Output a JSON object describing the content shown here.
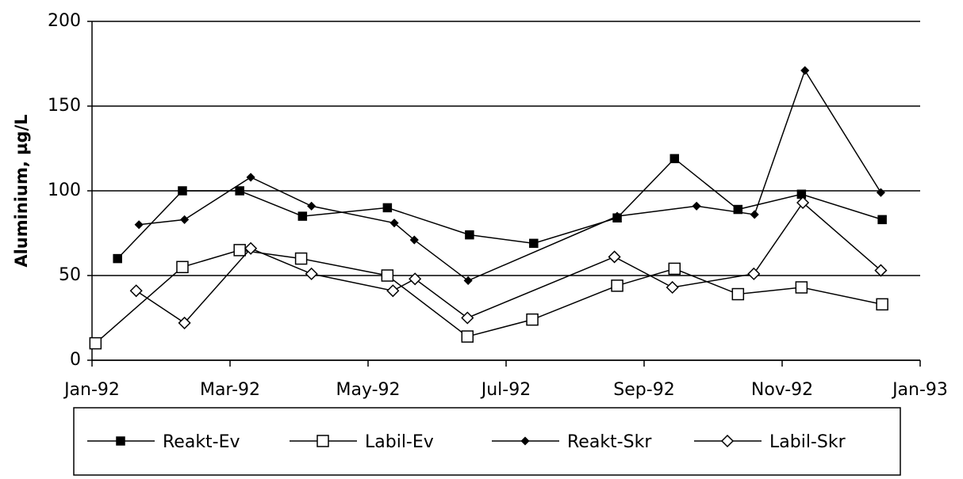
{
  "chart_data": {
    "type": "line",
    "y_label": "Aluminium, µg/L",
    "x": null,
    "xlim": [
      0,
      12
    ],
    "xticks": [
      {
        "value": 0,
        "label": "Jan-92"
      },
      {
        "value": 2,
        "label": "Mar-92"
      },
      {
        "value": 4,
        "label": "May-92"
      },
      {
        "value": 6,
        "label": "Jul-92"
      },
      {
        "value": 8,
        "label": "Sep-92"
      },
      {
        "value": 10,
        "label": "Nov-92"
      },
      {
        "value": 12,
        "label": "Jan-93"
      }
    ],
    "ylim": [
      0,
      200
    ],
    "yticks": [
      0,
      50,
      100,
      150,
      200
    ],
    "grid": true,
    "legend": "bottom",
    "series": [
      {
        "name": "Reakt-Ev",
        "color": "#000000",
        "marker": "square",
        "filled": true,
        "x": [
          0.37,
          1.31,
          2.14,
          3.05,
          4.28,
          5.47,
          6.4,
          7.61,
          8.44,
          9.36,
          10.28,
          11.45
        ],
        "values": [
          60,
          100,
          100,
          85,
          90,
          74,
          69,
          84,
          119,
          89,
          98,
          83
        ]
      },
      {
        "name": "Labil-Ev",
        "color": "#000000",
        "marker": "square",
        "filled": false,
        "x": [
          0.05,
          1.31,
          2.14,
          3.03,
          4.28,
          5.44,
          6.38,
          7.61,
          8.44,
          9.36,
          10.28,
          11.45
        ],
        "values": [
          10,
          55,
          65,
          60,
          50,
          14,
          24,
          44,
          54,
          39,
          43,
          33
        ]
      },
      {
        "name": "Reakt-Skr",
        "color": "#000000",
        "marker": "diamond",
        "filled": true,
        "x": [
          0.68,
          1.34,
          2.3,
          3.18,
          4.38,
          4.67,
          5.45,
          7.61,
          8.76,
          9.6,
          10.33,
          11.43
        ],
        "values": [
          80,
          83,
          108,
          91,
          81,
          71,
          47,
          85,
          91,
          86,
          171,
          99
        ]
      },
      {
        "name": "Labil-Skr",
        "color": "#000000",
        "marker": "diamond",
        "filled": false,
        "x": [
          0.64,
          1.34,
          2.3,
          3.18,
          4.36,
          4.68,
          5.44,
          7.57,
          8.41,
          9.59,
          10.3,
          11.43
        ],
        "values": [
          41,
          22,
          66,
          51,
          41,
          48,
          25,
          61,
          43,
          51,
          93,
          53
        ]
      }
    ]
  }
}
